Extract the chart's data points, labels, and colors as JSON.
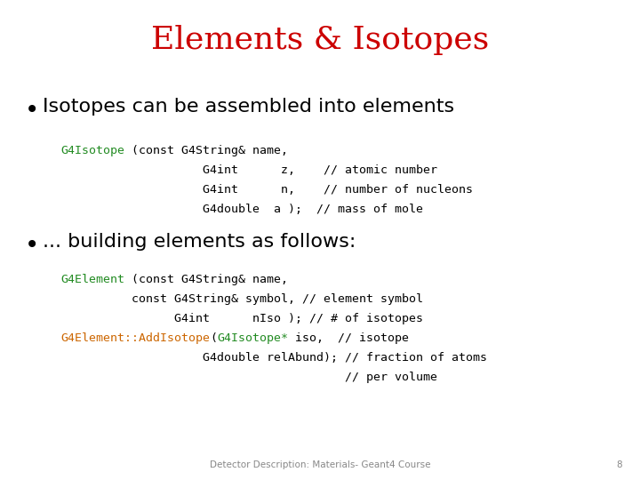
{
  "title": "Elements & Isotopes",
  "title_color": "#cc0000",
  "title_fontsize": 26,
  "background_color": "#ffffff",
  "bullet1": "Isotopes can be assembled into elements",
  "bullet2": "... building elements as follows:",
  "bullet_fontsize": 16,
  "bullet_color": "#000000",
  "code_fontsize": 9.5,
  "green_color": "#228b22",
  "orange_color": "#cc6600",
  "footer_text": "Detector Description: Materials- Geant4 Course",
  "footer_page": "8",
  "code_block1": [
    [
      {
        "text": "G4Isotope",
        "color": "#228b22"
      },
      {
        "text": " (const G4String& name,",
        "color": "#000000"
      }
    ],
    [
      {
        "text": "                    G4int      z,    // atomic number",
        "color": "#000000"
      }
    ],
    [
      {
        "text": "                    G4int      n,    // number of nucleons",
        "color": "#000000"
      }
    ],
    [
      {
        "text": "                    G4double  a );  // mass of mole",
        "color": "#000000"
      }
    ]
  ],
  "code_block2": [
    [
      {
        "text": "G4Element",
        "color": "#228b22"
      },
      {
        "text": " (const G4String& name,",
        "color": "#000000"
      }
    ],
    [
      {
        "text": "          const G4String& symbol, // element symbol",
        "color": "#000000"
      }
    ],
    [
      {
        "text": "                G4int      nIso ); // # of isotopes",
        "color": "#000000"
      }
    ],
    [
      {
        "text": "G4Element::AddIsotope",
        "color": "#cc6600"
      },
      {
        "text": "(",
        "color": "#000000"
      },
      {
        "text": "G4Isotope*",
        "color": "#228b22"
      },
      {
        "text": " iso,  // isotope",
        "color": "#000000"
      }
    ],
    [
      {
        "text": "                    G4double relAbund); // fraction of atoms",
        "color": "#000000"
      }
    ],
    [
      {
        "text": "                                        // per volume",
        "color": "#000000"
      }
    ]
  ]
}
